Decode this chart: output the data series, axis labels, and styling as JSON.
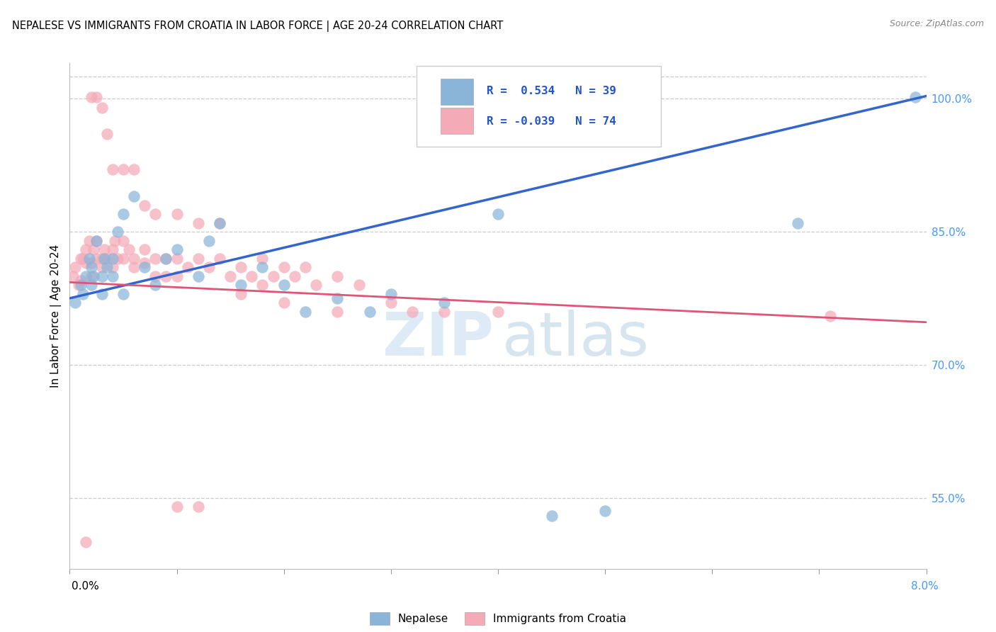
{
  "title": "NEPALESE VS IMMIGRANTS FROM CROATIA IN LABOR FORCE | AGE 20-24 CORRELATION CHART",
  "source": "Source: ZipAtlas.com",
  "ylabel": "In Labor Force | Age 20-24",
  "legend_blue_label": "Nepalese",
  "legend_pink_label": "Immigrants from Croatia",
  "blue_scatter_color": "#8ab4d8",
  "pink_scatter_color": "#f5aab8",
  "line_blue_color": "#3366cc",
  "line_pink_color": "#e05577",
  "R_text_color": "#2255cc",
  "ytick_color": "#4499ff",
  "x_min": 0.0,
  "x_max": 0.08,
  "y_min": 0.47,
  "y_max": 1.04,
  "yticks": [
    0.55,
    0.7,
    0.85,
    1.0
  ],
  "ytick_labels": [
    "55.0%",
    "70.0%",
    "85.0%",
    "100.0%"
  ],
  "blue_x": [
    0.0005,
    0.001,
    0.0012,
    0.0015,
    0.0018,
    0.002,
    0.002,
    0.0022,
    0.0025,
    0.003,
    0.003,
    0.0032,
    0.0035,
    0.004,
    0.004,
    0.0045,
    0.005,
    0.005,
    0.006,
    0.007,
    0.008,
    0.009,
    0.01,
    0.012,
    0.013,
    0.014,
    0.016,
    0.018,
    0.02,
    0.022,
    0.025,
    0.028,
    0.03,
    0.035,
    0.04,
    0.045,
    0.05,
    0.068,
    0.079
  ],
  "blue_y": [
    0.77,
    0.79,
    0.78,
    0.8,
    0.82,
    0.79,
    0.81,
    0.8,
    0.84,
    0.78,
    0.8,
    0.82,
    0.81,
    0.8,
    0.82,
    0.85,
    0.87,
    0.78,
    0.89,
    0.81,
    0.79,
    0.82,
    0.83,
    0.8,
    0.84,
    0.86,
    0.79,
    0.81,
    0.79,
    0.76,
    0.775,
    0.76,
    0.78,
    0.77,
    0.87,
    0.53,
    0.535,
    0.86,
    1.002
  ],
  "pink_x": [
    0.0003,
    0.0005,
    0.0008,
    0.001,
    0.001,
    0.0012,
    0.0015,
    0.0015,
    0.0018,
    0.002,
    0.002,
    0.0022,
    0.0025,
    0.0025,
    0.003,
    0.003,
    0.0032,
    0.0035,
    0.004,
    0.004,
    0.0042,
    0.0045,
    0.005,
    0.005,
    0.0055,
    0.006,
    0.006,
    0.007,
    0.007,
    0.008,
    0.008,
    0.009,
    0.009,
    0.01,
    0.01,
    0.011,
    0.012,
    0.013,
    0.014,
    0.015,
    0.016,
    0.017,
    0.018,
    0.019,
    0.02,
    0.021,
    0.022,
    0.023,
    0.025,
    0.027,
    0.002,
    0.0025,
    0.003,
    0.0035,
    0.004,
    0.005,
    0.006,
    0.007,
    0.008,
    0.01,
    0.012,
    0.014,
    0.016,
    0.018,
    0.02,
    0.025,
    0.03,
    0.032,
    0.035,
    0.04,
    0.01,
    0.012,
    0.071,
    0.0015
  ],
  "pink_y": [
    0.8,
    0.81,
    0.79,
    0.82,
    0.795,
    0.82,
    0.83,
    0.815,
    0.84,
    0.8,
    0.815,
    0.83,
    0.84,
    0.82,
    0.82,
    0.81,
    0.83,
    0.82,
    0.83,
    0.81,
    0.84,
    0.82,
    0.84,
    0.82,
    0.83,
    0.82,
    0.81,
    0.83,
    0.815,
    0.82,
    0.8,
    0.82,
    0.8,
    0.82,
    0.8,
    0.81,
    0.82,
    0.81,
    0.82,
    0.8,
    0.81,
    0.8,
    0.82,
    0.8,
    0.81,
    0.8,
    0.81,
    0.79,
    0.8,
    0.79,
    1.002,
    1.002,
    0.99,
    0.96,
    0.92,
    0.92,
    0.92,
    0.88,
    0.87,
    0.87,
    0.86,
    0.86,
    0.78,
    0.79,
    0.77,
    0.76,
    0.77,
    0.76,
    0.76,
    0.76,
    0.54,
    0.54,
    0.755,
    0.5
  ]
}
